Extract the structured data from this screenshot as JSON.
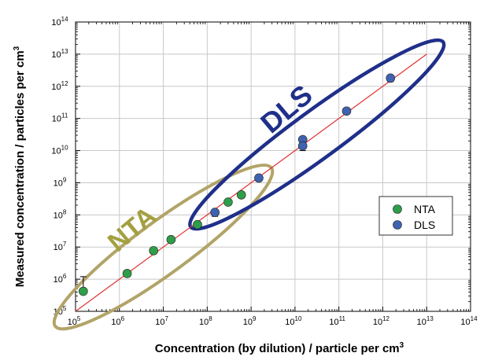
{
  "chart_data": {
    "type": "scatter",
    "xscale": "log",
    "yscale": "log",
    "xlim": [
      100000,
      100000000000000
    ],
    "ylim": [
      100000,
      100000000000000
    ],
    "xticks": [
      {
        "base": "10",
        "exp": "5",
        "v": 100000
      },
      {
        "base": "10",
        "exp": "6",
        "v": 1000000
      },
      {
        "base": "10",
        "exp": "7",
        "v": 10000000
      },
      {
        "base": "10",
        "exp": "8",
        "v": 100000000
      },
      {
        "base": "10",
        "exp": "9",
        "v": 1000000000
      },
      {
        "base": "10",
        "exp": "10",
        "v": 10000000000
      },
      {
        "base": "10",
        "exp": "11",
        "v": 100000000000
      },
      {
        "base": "10",
        "exp": "12",
        "v": 1000000000000
      },
      {
        "base": "10",
        "exp": "13",
        "v": 10000000000000
      },
      {
        "base": "10",
        "exp": "14",
        "v": 100000000000000
      }
    ],
    "yticks": [
      {
        "base": "10",
        "exp": "5",
        "v": 100000
      },
      {
        "base": "10",
        "exp": "6",
        "v": 1000000
      },
      {
        "base": "10",
        "exp": "7",
        "v": 10000000
      },
      {
        "base": "10",
        "exp": "8",
        "v": 100000000
      },
      {
        "base": "10",
        "exp": "9",
        "v": 1000000000
      },
      {
        "base": "10",
        "exp": "10",
        "v": 10000000000
      },
      {
        "base": "10",
        "exp": "11",
        "v": 100000000000
      },
      {
        "base": "10",
        "exp": "12",
        "v": 1000000000000
      },
      {
        "base": "10",
        "exp": "13",
        "v": 10000000000000
      },
      {
        "base": "10",
        "exp": "14",
        "v": 100000000000000
      }
    ],
    "xlabel": {
      "main": "Concentration (by dilution) / particle per cm",
      "sup": "3"
    },
    "ylabel": {
      "main": "Measured concentration / particles per cm",
      "sup": "3"
    },
    "grid": true,
    "legend_position": "right",
    "series": [
      {
        "name": "NTA",
        "color": "#2e9e48",
        "points": [
          {
            "x": 150000,
            "y": 420000,
            "ylo": 400000,
            "yhi": 1200000
          },
          {
            "x": 1500000,
            "y": 1500000,
            "ylo": 1200000,
            "yhi": 1800000
          },
          {
            "x": 6000000,
            "y": 7700000,
            "ylo": 6500000,
            "yhi": 8500000
          },
          {
            "x": 15000000,
            "y": 17000000,
            "ylo": 14500000,
            "yhi": 19000000
          },
          {
            "x": 60000000,
            "y": 50000000,
            "ylo": 44000000,
            "yhi": 56000000
          },
          {
            "x": 300000000,
            "y": 250000000,
            "ylo": 220000000,
            "yhi": 280000000
          },
          {
            "x": 600000000,
            "y": 420000000,
            "ylo": 370000000,
            "yhi": 470000000
          }
        ]
      },
      {
        "name": "DLS",
        "color": "#3e63b0",
        "points": [
          {
            "x": 150000000,
            "y": 120000000,
            "ylo": 90000000,
            "yhi": 140000000
          },
          {
            "x": 1500000000,
            "y": 1400000000,
            "ylo": 1200000000,
            "yhi": 1600000000
          },
          {
            "x": 15000000000,
            "y": 22000000000,
            "ylo": 19000000000,
            "yhi": 25000000000
          },
          {
            "x": 15000000000,
            "y": 14000000000,
            "ylo": 10000000000,
            "yhi": 17000000000
          },
          {
            "x": 150000000000,
            "y": 170000000000,
            "ylo": 140000000000,
            "yhi": 200000000000
          },
          {
            "x": 1500000000000,
            "y": 1800000000000,
            "ylo": 1400000000000,
            "yhi": 2200000000000
          }
        ]
      }
    ],
    "reference_line": {
      "color": "#e03030",
      "x": [
        100000,
        10000000000000
      ],
      "y": [
        100000,
        10000000000000
      ]
    },
    "annotations": [
      {
        "text": "NTA",
        "color": "#a4a040",
        "ellipse_color": "#b2a468"
      },
      {
        "text": "DLS",
        "color": "#1f2f8a",
        "ellipse_color": "#1f2f8a"
      }
    ]
  }
}
